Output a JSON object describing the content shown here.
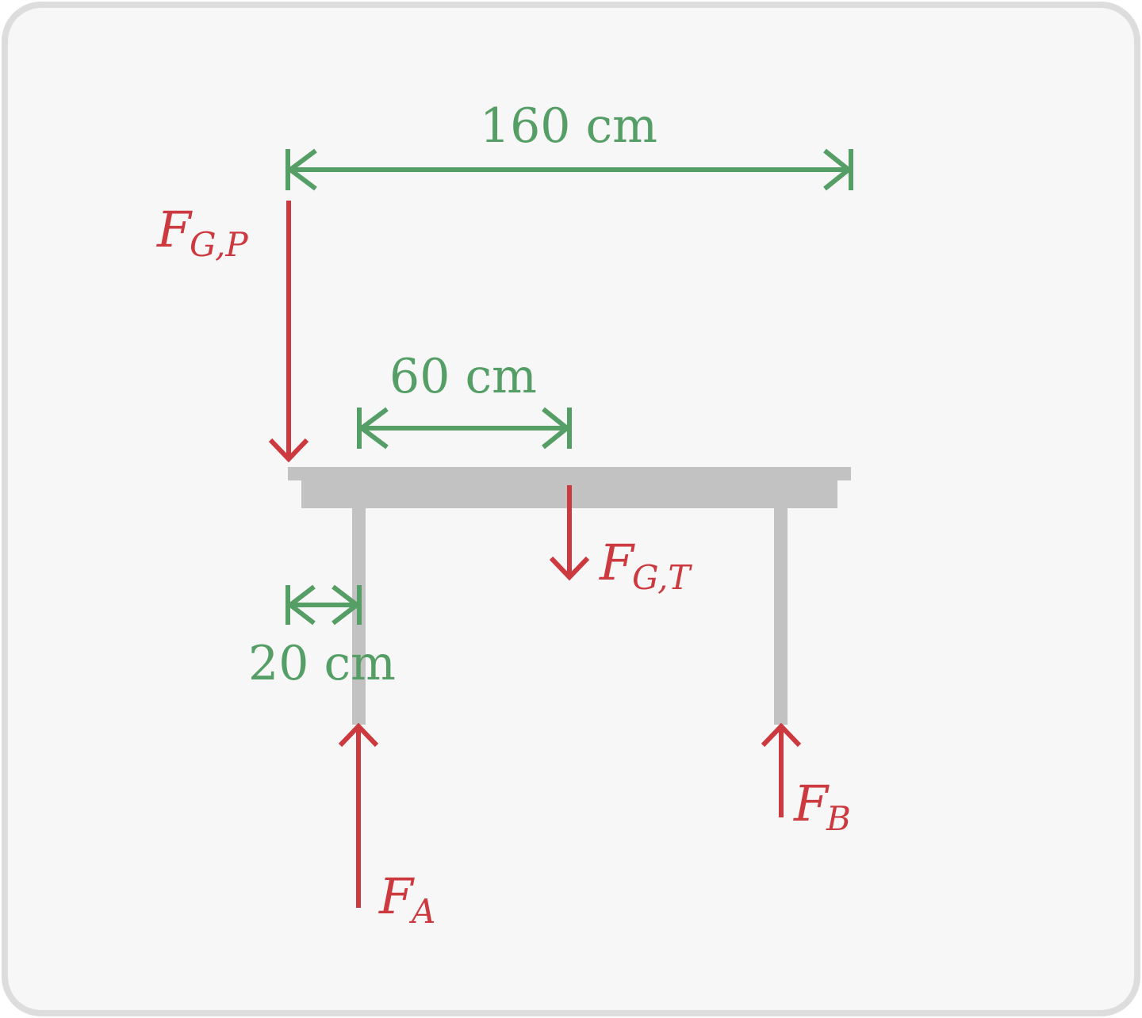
{
  "colors": {
    "frame_border": "#dddddd",
    "frame_fill": "#f7f7f8",
    "table": "#c2c2c2",
    "force": "#cc3a3f",
    "dimension": "#559e65"
  },
  "dimensions": {
    "total_length": "160 cm",
    "center_of_mass": "60 cm",
    "leg_offset": "20 cm"
  },
  "forces": {
    "person_weight": {
      "symbol": "F",
      "sub": "G,P"
    },
    "table_weight": {
      "symbol": "F",
      "sub": "G,T"
    },
    "support_a": {
      "symbol": "F",
      "sub": "A"
    },
    "support_b": {
      "symbol": "F",
      "sub": "B"
    }
  }
}
